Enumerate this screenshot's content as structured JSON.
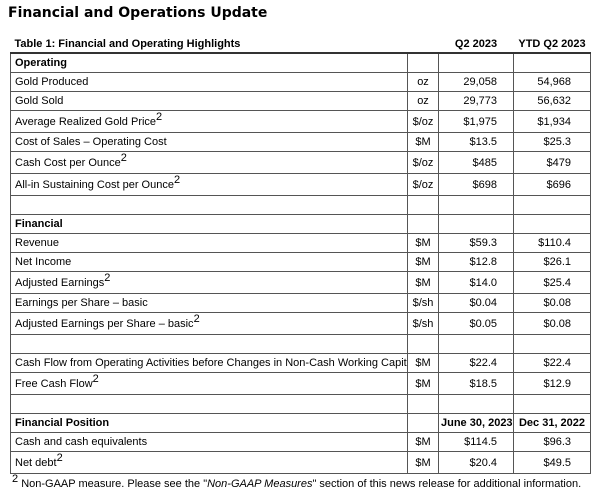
{
  "title": "Financial and Operations Update",
  "table": {
    "caption": "Table 1: Financial and Operating Highlights",
    "col1": "Q2 2023",
    "col2": "YTD Q2 2023",
    "sections": [
      {
        "title": "Operating",
        "rows": [
          {
            "label": "Gold Produced",
            "unit": "oz",
            "q2": "29,058",
            "ytd": "54,968"
          },
          {
            "label": "Gold Sold",
            "unit": "oz",
            "q2": "29,773",
            "ytd": "56,632"
          },
          {
            "label": "Average Realized Gold Price",
            "sup": "2",
            "unit": "$/oz",
            "q2": "$1,975",
            "ytd": "$1,934"
          },
          {
            "label": "Cost of Sales – Operating Cost",
            "unit": "$M",
            "q2": "$13.5",
            "ytd": "$25.3"
          },
          {
            "label": "Cash Cost per Ounce",
            "sup": "2",
            "unit": "$/oz",
            "q2": "$485",
            "ytd": "$479"
          },
          {
            "label": "All-in Sustaining Cost per Ounce",
            "sup": "2",
            "unit": "$/oz",
            "q2": "$698",
            "ytd": "$696"
          }
        ]
      },
      {
        "title": "Financial",
        "rows": [
          {
            "label": "Revenue",
            "unit": "$M",
            "q2": "$59.3",
            "ytd": "$110.4"
          },
          {
            "label": "Net Income",
            "unit": "$M",
            "q2": "$12.8",
            "ytd": "$26.1"
          },
          {
            "label": "Adjusted Earnings",
            "sup": "2",
            "unit": "$M",
            "q2": "$14.0",
            "ytd": "$25.4"
          },
          {
            "label": "Earnings per Share – basic",
            "unit": "$/sh",
            "q2": "$0.04",
            "ytd": "$0.08"
          },
          {
            "label": "Adjusted Earnings per Share – basic",
            "sup": "2",
            "unit": "$/sh",
            "q2": "$0.05",
            "ytd": "$0.08"
          }
        ]
      },
      {
        "rows": [
          {
            "label": "Cash Flow from Operating Activities before Changes in Non-Cash Working Capital",
            "unit": "$M",
            "q2": "$22.4",
            "ytd": "$22.4"
          },
          {
            "label": "Free Cash Flow",
            "sup": "2",
            "unit": "$M",
            "q2": "$18.5",
            "ytd": "$12.9"
          }
        ]
      },
      {
        "title": "Financial Position",
        "col1": "June 30, 2023",
        "col2": "Dec 31, 2022",
        "rows": [
          {
            "label": "Cash and cash equivalents",
            "unit": "$M",
            "q2": "$114.5",
            "ytd": "$96.3"
          },
          {
            "label": "Net debt",
            "sup": "2",
            "unit": "$M",
            "q2": "$20.4",
            "ytd": "$49.5"
          }
        ]
      }
    ]
  },
  "footnote": {
    "marker": "2",
    "prefix": "Non-GAAP measure. Please see the \"",
    "italic": "Non-GAAP Measures",
    "suffix": "\" section of this news release for additional information."
  }
}
